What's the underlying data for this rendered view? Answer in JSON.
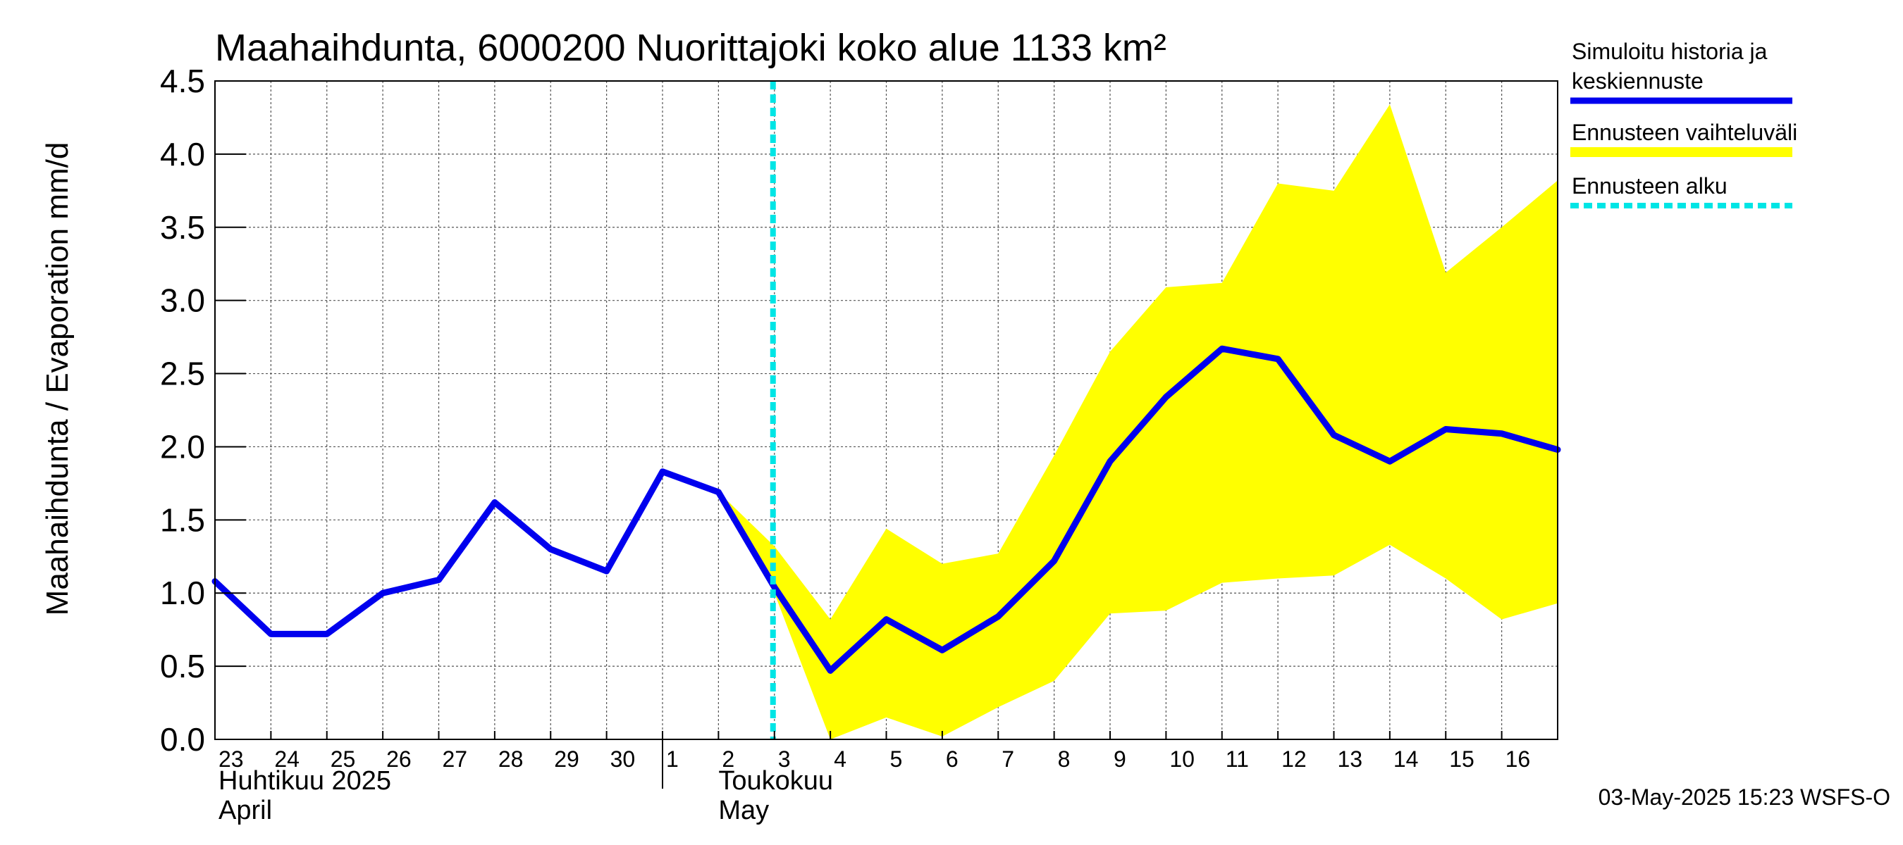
{
  "chart_data": {
    "type": "line",
    "title": "Maahaihdunta, 6000200 Nuorittajoki koko alue 1133 km²",
    "ylabel": "Maahaihdunta / Evaporation   mm/d",
    "ylim": [
      0,
      4.5
    ],
    "yticks": [
      "0.0",
      "0.5",
      "1.0",
      "1.5",
      "2.0",
      "2.5",
      "3.0",
      "3.5",
      "4.0",
      "4.5"
    ],
    "x": [
      "2025-04-23",
      "2025-04-24",
      "2025-04-25",
      "2025-04-26",
      "2025-04-27",
      "2025-04-28",
      "2025-04-29",
      "2025-04-30",
      "2025-05-01",
      "2025-05-02",
      "2025-05-03",
      "2025-05-04",
      "2025-05-05",
      "2025-05-06",
      "2025-05-07",
      "2025-05-08",
      "2025-05-09",
      "2025-05-10",
      "2025-05-11",
      "2025-05-12",
      "2025-05-13",
      "2025-05-14",
      "2025-05-15",
      "2025-05-16",
      "2025-05-17"
    ],
    "xticks": [
      "23",
      "24",
      "25",
      "26",
      "27",
      "28",
      "29",
      "30",
      "1",
      "2",
      "3",
      "4",
      "5",
      "6",
      "7",
      "8",
      "9",
      "10",
      "11",
      "12",
      "13",
      "14",
      "15",
      "16"
    ],
    "month_labels": [
      {
        "fi": "Huhtikuu  2025",
        "en": "April"
      },
      {
        "fi": "Toukokuu",
        "en": "May"
      }
    ],
    "grid": true,
    "legend_position": "right",
    "series": [
      {
        "name": "Simuloitu historia ja keskiennuste",
        "color": "#0000ee",
        "values": [
          1.08,
          0.72,
          0.72,
          1.0,
          1.09,
          1.62,
          1.3,
          1.15,
          1.83,
          1.69,
          1.04,
          0.47,
          0.82,
          0.61,
          0.84,
          1.22,
          1.9,
          2.34,
          2.67,
          2.6,
          2.08,
          1.9,
          2.12,
          2.09,
          1.98
        ]
      }
    ],
    "band": {
      "name": "Ennusteen vaihteluväli",
      "color": "#ffff00",
      "x_start": "2025-05-02",
      "lower": [
        1.69,
        1.0,
        0.0,
        0.15,
        0.02,
        0.22,
        0.4,
        0.86,
        0.88,
        1.07,
        1.1,
        1.12,
        1.33,
        1.1,
        0.82,
        0.93
      ],
      "upper": [
        1.69,
        1.32,
        0.82,
        1.44,
        1.2,
        1.27,
        1.94,
        2.65,
        3.09,
        3.12,
        3.8,
        3.75,
        4.34,
        3.19,
        3.5,
        3.82
      ]
    },
    "forecast_start": {
      "name": "Ennusteen alku",
      "color": "#00e5e5",
      "x": "2025-05-03"
    },
    "legend": [
      {
        "label": "Simuloitu historia ja keskiennuste",
        "color": "#0000ee",
        "style": "solid"
      },
      {
        "label": "Ennusteen vaihteluväli",
        "color": "#ffff00",
        "style": "solid"
      },
      {
        "label": "Ennusteen alku",
        "color": "#00e5e5",
        "style": "dashed"
      }
    ],
    "footer": "03-May-2025 15:23 WSFS-O"
  }
}
